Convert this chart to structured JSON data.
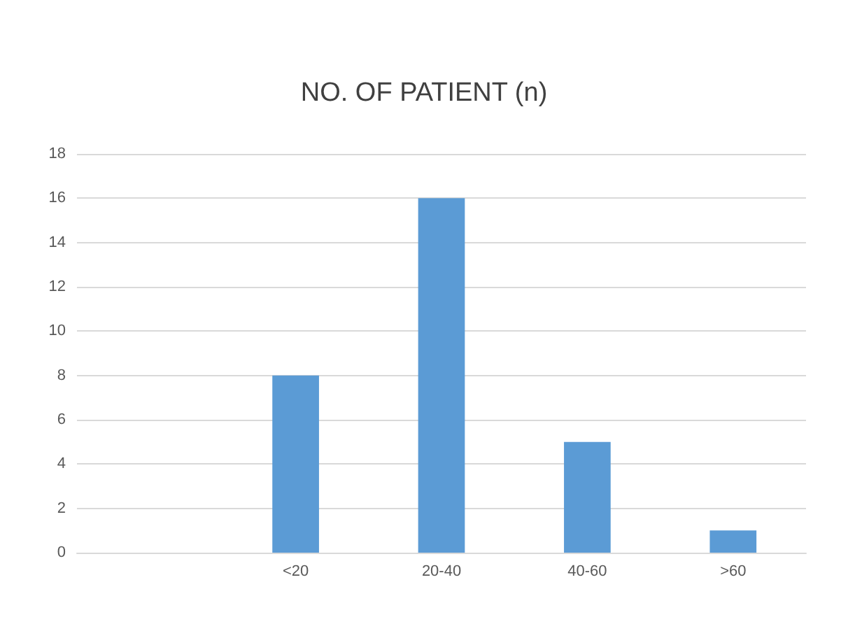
{
  "chart_data": {
    "type": "bar",
    "title": "NO. OF PATIENT (n)",
    "categories": [
      null,
      "<20",
      "20-40",
      "40-60",
      ">60"
    ],
    "values": [
      null,
      8,
      16,
      5,
      1
    ],
    "color": "#5b9bd5",
    "ylim": [
      0,
      18
    ],
    "yticks": [
      0,
      2,
      4,
      6,
      8,
      10,
      12,
      14,
      16,
      18
    ],
    "grid": "y"
  }
}
